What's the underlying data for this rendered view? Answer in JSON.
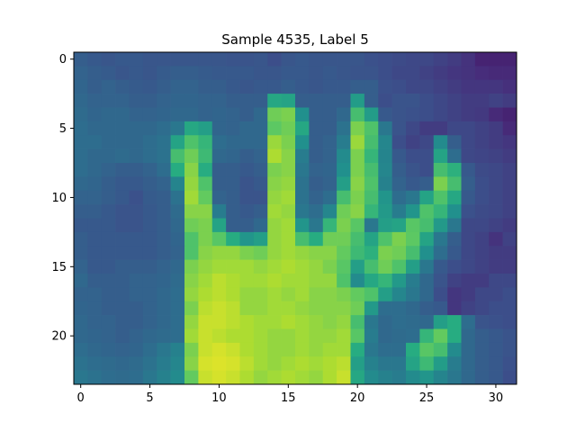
{
  "chart_data": {
    "type": "heatmap",
    "title": "Sample 4535, Label 5",
    "xlabel": "",
    "ylabel": "",
    "colormap": "viridis",
    "grid": false,
    "rows": 24,
    "cols": 32,
    "xlim": [
      -0.5,
      31.5
    ],
    "ylim": [
      23.5,
      -0.5
    ],
    "x_ticks": [
      0,
      5,
      10,
      15,
      20,
      25,
      30
    ],
    "y_ticks": [
      0,
      5,
      10,
      15,
      20
    ],
    "value_range": [
      0,
      1
    ],
    "values": [
      [
        0.3,
        0.28,
        0.27,
        0.28,
        0.28,
        0.27,
        0.27,
        0.27,
        0.27,
        0.27,
        0.27,
        0.26,
        0.26,
        0.27,
        0.24,
        0.27,
        0.28,
        0.27,
        0.27,
        0.27,
        0.27,
        0.25,
        0.24,
        0.23,
        0.22,
        0.22,
        0.2,
        0.18,
        0.15,
        0.1,
        0.1,
        0.1
      ],
      [
        0.32,
        0.3,
        0.29,
        0.27,
        0.28,
        0.27,
        0.29,
        0.3,
        0.3,
        0.29,
        0.28,
        0.28,
        0.28,
        0.27,
        0.27,
        0.28,
        0.28,
        0.27,
        0.28,
        0.27,
        0.26,
        0.26,
        0.24,
        0.22,
        0.22,
        0.2,
        0.18,
        0.16,
        0.15,
        0.13,
        0.12,
        0.12
      ],
      [
        0.33,
        0.3,
        0.32,
        0.3,
        0.29,
        0.28,
        0.3,
        0.32,
        0.32,
        0.3,
        0.3,
        0.28,
        0.27,
        0.28,
        0.28,
        0.3,
        0.28,
        0.27,
        0.28,
        0.28,
        0.3,
        0.3,
        0.25,
        0.24,
        0.22,
        0.22,
        0.2,
        0.18,
        0.16,
        0.16,
        0.16,
        0.14
      ],
      [
        0.34,
        0.32,
        0.32,
        0.32,
        0.3,
        0.3,
        0.32,
        0.33,
        0.33,
        0.32,
        0.32,
        0.3,
        0.3,
        0.3,
        0.6,
        0.58,
        0.3,
        0.3,
        0.3,
        0.3,
        0.55,
        0.3,
        0.24,
        0.26,
        0.26,
        0.24,
        0.22,
        0.2,
        0.18,
        0.18,
        0.2,
        0.18
      ],
      [
        0.35,
        0.33,
        0.34,
        0.34,
        0.32,
        0.32,
        0.33,
        0.34,
        0.34,
        0.32,
        0.33,
        0.32,
        0.3,
        0.34,
        0.78,
        0.8,
        0.5,
        0.3,
        0.3,
        0.34,
        0.7,
        0.55,
        0.28,
        0.26,
        0.25,
        0.24,
        0.22,
        0.2,
        0.18,
        0.17,
        0.12,
        0.1
      ],
      [
        0.36,
        0.34,
        0.34,
        0.34,
        0.34,
        0.34,
        0.36,
        0.4,
        0.6,
        0.56,
        0.33,
        0.32,
        0.34,
        0.34,
        0.75,
        0.78,
        0.6,
        0.3,
        0.3,
        0.38,
        0.8,
        0.72,
        0.4,
        0.26,
        0.22,
        0.18,
        0.18,
        0.22,
        0.22,
        0.2,
        0.18,
        0.12
      ],
      [
        0.36,
        0.36,
        0.34,
        0.34,
        0.34,
        0.36,
        0.38,
        0.58,
        0.72,
        0.66,
        0.36,
        0.34,
        0.34,
        0.34,
        0.85,
        0.8,
        0.5,
        0.3,
        0.32,
        0.42,
        0.85,
        0.7,
        0.46,
        0.24,
        0.2,
        0.22,
        0.48,
        0.3,
        0.22,
        0.2,
        0.18,
        0.16
      ],
      [
        0.36,
        0.34,
        0.34,
        0.35,
        0.34,
        0.36,
        0.38,
        0.7,
        0.78,
        0.68,
        0.34,
        0.33,
        0.3,
        0.32,
        0.88,
        0.82,
        0.42,
        0.3,
        0.32,
        0.48,
        0.8,
        0.66,
        0.45,
        0.28,
        0.24,
        0.24,
        0.58,
        0.36,
        0.22,
        0.21,
        0.2,
        0.18
      ],
      [
        0.36,
        0.34,
        0.32,
        0.3,
        0.3,
        0.32,
        0.36,
        0.62,
        0.82,
        0.62,
        0.3,
        0.3,
        0.28,
        0.3,
        0.8,
        0.82,
        0.4,
        0.32,
        0.33,
        0.5,
        0.8,
        0.7,
        0.46,
        0.3,
        0.26,
        0.24,
        0.7,
        0.64,
        0.28,
        0.23,
        0.22,
        0.2
      ],
      [
        0.34,
        0.33,
        0.3,
        0.28,
        0.28,
        0.3,
        0.32,
        0.45,
        0.84,
        0.72,
        0.3,
        0.3,
        0.26,
        0.28,
        0.82,
        0.84,
        0.38,
        0.3,
        0.32,
        0.56,
        0.82,
        0.72,
        0.44,
        0.32,
        0.28,
        0.3,
        0.8,
        0.7,
        0.3,
        0.24,
        0.22,
        0.2
      ],
      [
        0.32,
        0.32,
        0.3,
        0.28,
        0.25,
        0.29,
        0.3,
        0.38,
        0.86,
        0.76,
        0.32,
        0.3,
        0.26,
        0.26,
        0.84,
        0.86,
        0.38,
        0.32,
        0.36,
        0.7,
        0.8,
        0.7,
        0.52,
        0.36,
        0.4,
        0.58,
        0.72,
        0.6,
        0.28,
        0.24,
        0.22,
        0.2
      ],
      [
        0.3,
        0.3,
        0.28,
        0.26,
        0.26,
        0.28,
        0.3,
        0.35,
        0.82,
        0.82,
        0.42,
        0.3,
        0.28,
        0.3,
        0.86,
        0.84,
        0.4,
        0.36,
        0.46,
        0.78,
        0.82,
        0.66,
        0.54,
        0.42,
        0.52,
        0.72,
        0.66,
        0.5,
        0.25,
        0.23,
        0.22,
        0.2
      ],
      [
        0.28,
        0.28,
        0.28,
        0.26,
        0.26,
        0.28,
        0.3,
        0.34,
        0.78,
        0.8,
        0.58,
        0.3,
        0.3,
        0.34,
        0.84,
        0.86,
        0.52,
        0.4,
        0.66,
        0.8,
        0.74,
        0.4,
        0.56,
        0.58,
        0.74,
        0.7,
        0.54,
        0.4,
        0.22,
        0.22,
        0.2,
        0.18
      ],
      [
        0.3,
        0.28,
        0.28,
        0.28,
        0.28,
        0.28,
        0.3,
        0.33,
        0.72,
        0.8,
        0.74,
        0.62,
        0.52,
        0.56,
        0.84,
        0.86,
        0.7,
        0.62,
        0.78,
        0.78,
        0.7,
        0.58,
        0.72,
        0.8,
        0.75,
        0.58,
        0.4,
        0.3,
        0.22,
        0.2,
        0.15,
        0.2
      ],
      [
        0.3,
        0.28,
        0.28,
        0.28,
        0.28,
        0.28,
        0.3,
        0.32,
        0.72,
        0.82,
        0.84,
        0.84,
        0.8,
        0.78,
        0.84,
        0.86,
        0.84,
        0.82,
        0.82,
        0.76,
        0.68,
        0.64,
        0.8,
        0.78,
        0.7,
        0.5,
        0.36,
        0.28,
        0.22,
        0.2,
        0.18,
        0.18
      ],
      [
        0.32,
        0.28,
        0.28,
        0.3,
        0.3,
        0.3,
        0.32,
        0.34,
        0.8,
        0.84,
        0.86,
        0.86,
        0.86,
        0.84,
        0.86,
        0.88,
        0.86,
        0.84,
        0.8,
        0.74,
        0.56,
        0.7,
        0.78,
        0.72,
        0.56,
        0.4,
        0.28,
        0.24,
        0.22,
        0.2,
        0.18,
        0.18
      ],
      [
        0.34,
        0.3,
        0.3,
        0.3,
        0.32,
        0.32,
        0.33,
        0.35,
        0.82,
        0.86,
        0.9,
        0.88,
        0.86,
        0.86,
        0.88,
        0.86,
        0.86,
        0.84,
        0.84,
        0.72,
        0.48,
        0.6,
        0.66,
        0.54,
        0.42,
        0.34,
        0.26,
        0.2,
        0.18,
        0.18,
        0.22,
        0.22
      ],
      [
        0.32,
        0.32,
        0.3,
        0.3,
        0.32,
        0.32,
        0.34,
        0.36,
        0.84,
        0.88,
        0.9,
        0.88,
        0.84,
        0.84,
        0.86,
        0.84,
        0.86,
        0.82,
        0.82,
        0.8,
        0.76,
        0.72,
        0.56,
        0.46,
        0.4,
        0.34,
        0.24,
        0.16,
        0.18,
        0.22,
        0.22,
        0.24
      ],
      [
        0.33,
        0.32,
        0.3,
        0.3,
        0.3,
        0.32,
        0.34,
        0.36,
        0.8,
        0.9,
        0.92,
        0.9,
        0.84,
        0.84,
        0.86,
        0.86,
        0.84,
        0.82,
        0.82,
        0.82,
        0.78,
        0.54,
        0.36,
        0.36,
        0.34,
        0.3,
        0.28,
        0.16,
        0.2,
        0.22,
        0.24,
        0.24
      ],
      [
        0.34,
        0.32,
        0.32,
        0.3,
        0.3,
        0.32,
        0.34,
        0.36,
        0.84,
        0.92,
        0.92,
        0.9,
        0.88,
        0.86,
        0.86,
        0.88,
        0.86,
        0.84,
        0.82,
        0.84,
        0.7,
        0.4,
        0.34,
        0.36,
        0.35,
        0.34,
        0.56,
        0.62,
        0.36,
        0.26,
        0.25,
        0.24
      ],
      [
        0.34,
        0.33,
        0.32,
        0.3,
        0.32,
        0.34,
        0.35,
        0.36,
        0.86,
        0.92,
        0.9,
        0.88,
        0.88,
        0.86,
        0.84,
        0.84,
        0.86,
        0.84,
        0.84,
        0.86,
        0.74,
        0.42,
        0.34,
        0.35,
        0.36,
        0.66,
        0.76,
        0.62,
        0.34,
        0.3,
        0.28,
        0.26
      ],
      [
        0.36,
        0.34,
        0.33,
        0.32,
        0.33,
        0.36,
        0.4,
        0.44,
        0.8,
        0.92,
        0.94,
        0.92,
        0.88,
        0.86,
        0.84,
        0.84,
        0.86,
        0.84,
        0.86,
        0.86,
        0.62,
        0.4,
        0.36,
        0.36,
        0.62,
        0.74,
        0.7,
        0.48,
        0.34,
        0.3,
        0.28,
        0.26
      ],
      [
        0.38,
        0.36,
        0.35,
        0.34,
        0.35,
        0.38,
        0.42,
        0.46,
        0.82,
        0.94,
        0.95,
        0.94,
        0.9,
        0.86,
        0.84,
        0.86,
        0.88,
        0.86,
        0.88,
        0.9,
        0.56,
        0.44,
        0.4,
        0.4,
        0.58,
        0.68,
        0.55,
        0.42,
        0.34,
        0.3,
        0.28,
        0.25
      ],
      [
        0.4,
        0.38,
        0.36,
        0.35,
        0.36,
        0.4,
        0.44,
        0.48,
        0.76,
        0.92,
        0.94,
        0.92,
        0.88,
        0.84,
        0.86,
        0.88,
        0.86,
        0.84,
        0.88,
        0.92,
        0.6,
        0.48,
        0.44,
        0.42,
        0.48,
        0.52,
        0.45,
        0.4,
        0.34,
        0.3,
        0.28,
        0.24
      ]
    ]
  }
}
